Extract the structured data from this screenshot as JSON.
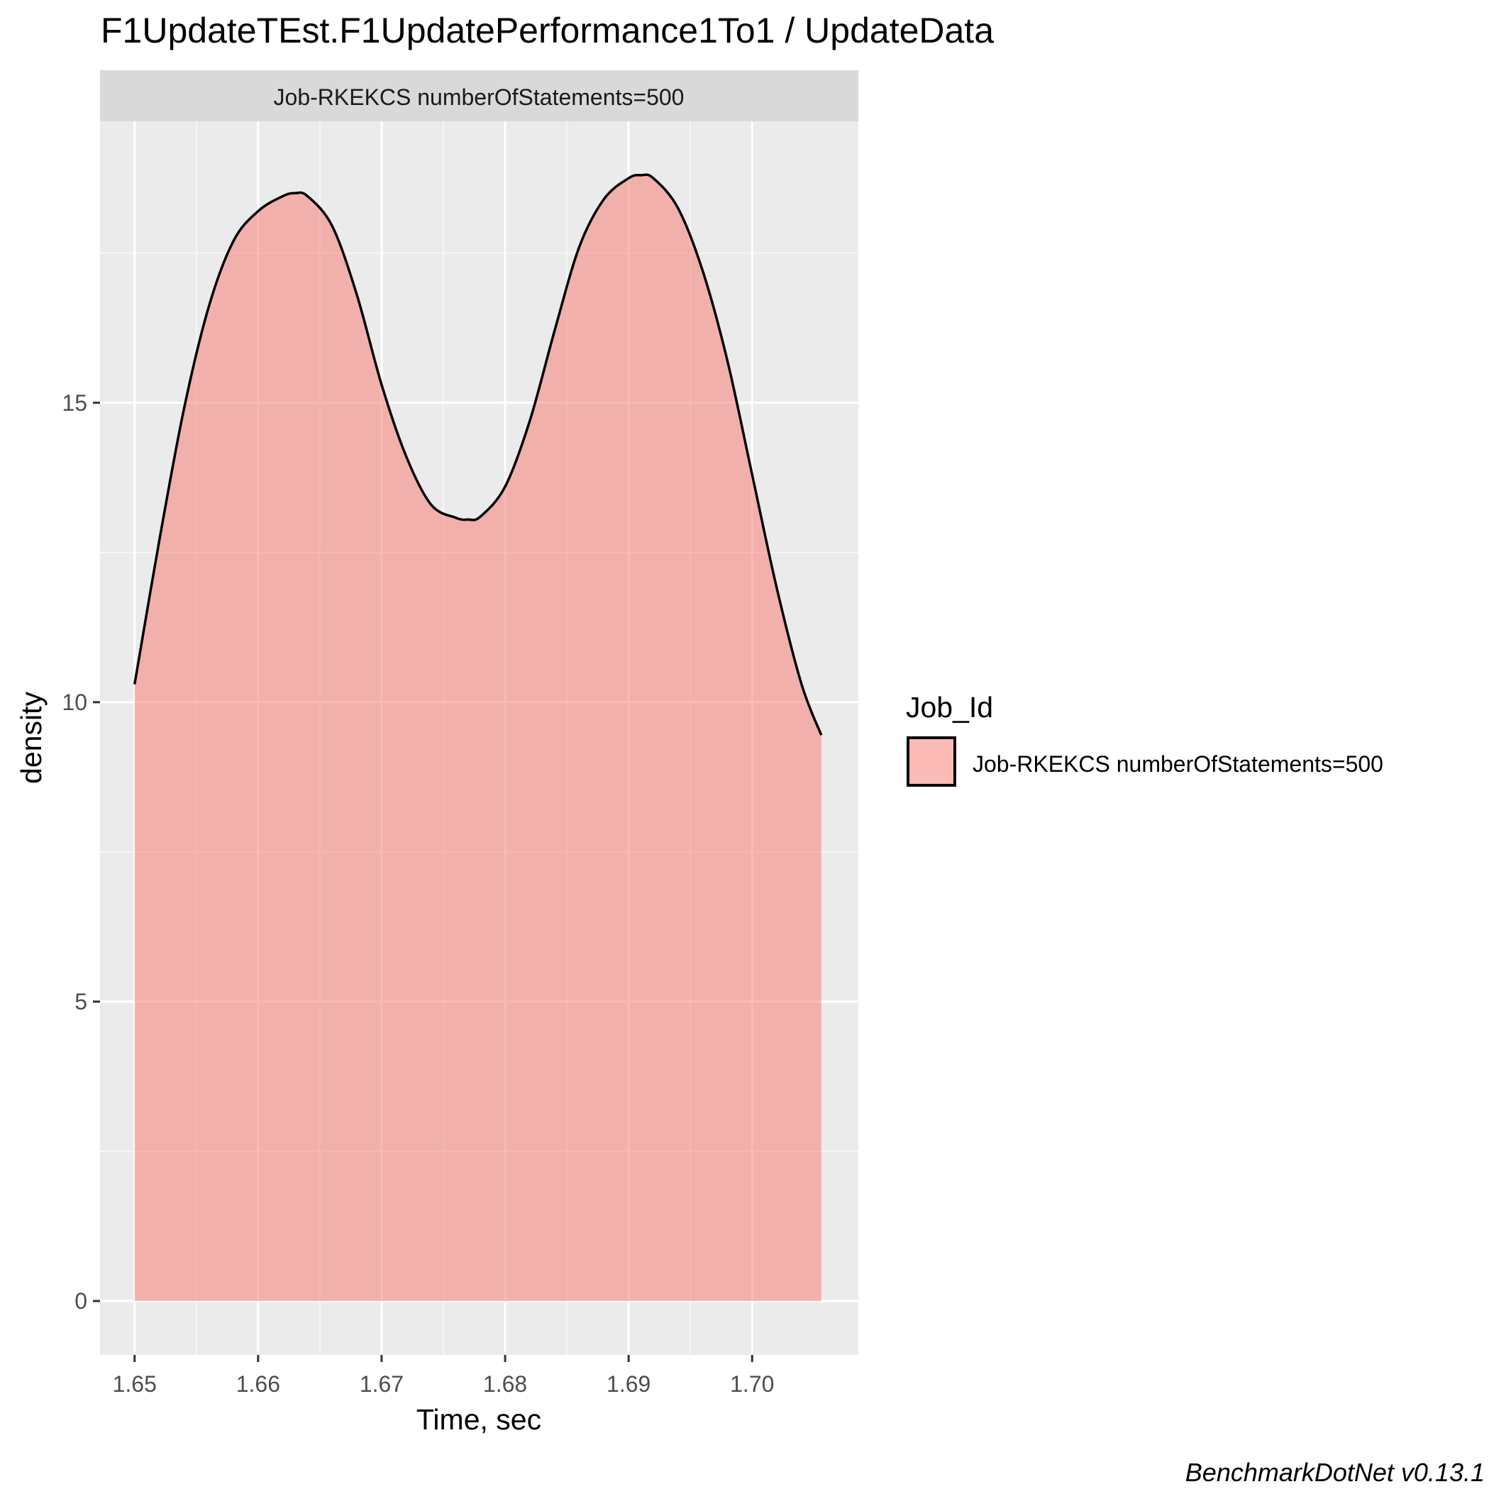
{
  "chart_data": {
    "type": "area",
    "title": "F1UpdateTEst.F1UpdatePerformance1To1 / UpdateData",
    "facet_label": "Job-RKEKCS numberOfStatements=500",
    "xlabel": "Time, sec",
    "ylabel": "density",
    "xlim": [
      1.6472,
      1.7086
    ],
    "ylim": [
      -0.9,
      19.7
    ],
    "x_ticks": [
      1.65,
      1.66,
      1.67,
      1.68,
      1.69,
      1.7
    ],
    "x_tick_labels": [
      "1.65",
      "1.66",
      "1.67",
      "1.68",
      "1.69",
      "1.70"
    ],
    "y_ticks": [
      0,
      5,
      10,
      15
    ],
    "y_tick_labels": [
      "0",
      "5",
      "10",
      "15"
    ],
    "grid": true,
    "legend": {
      "title": "Job_Id",
      "position": "right",
      "entries": [
        "Job-RKEKCS numberOfStatements=500"
      ]
    },
    "series": [
      {
        "name": "Job-RKEKCS numberOfStatements=500",
        "color": "#f8766d",
        "opacity": 0.5,
        "outline": "#000000",
        "x": [
          1.65,
          1.652,
          1.654,
          1.656,
          1.658,
          1.66,
          1.662,
          1.663,
          1.664,
          1.666,
          1.668,
          1.67,
          1.672,
          1.674,
          1.676,
          1.677,
          1.678,
          1.68,
          1.682,
          1.684,
          1.686,
          1.688,
          1.69,
          1.691,
          1.692,
          1.694,
          1.696,
          1.698,
          1.7,
          1.702,
          1.704,
          1.7056
        ],
        "values": [
          10.3,
          12.7,
          14.9,
          16.6,
          17.7,
          18.2,
          18.45,
          18.5,
          18.45,
          17.95,
          16.8,
          15.3,
          14.1,
          13.3,
          13.08,
          13.05,
          13.1,
          13.6,
          14.7,
          16.2,
          17.6,
          18.4,
          18.75,
          18.8,
          18.75,
          18.25,
          17.2,
          15.7,
          13.8,
          11.9,
          10.3,
          9.45
        ]
      }
    ],
    "caption": "BenchmarkDotNet v0.13.1"
  }
}
